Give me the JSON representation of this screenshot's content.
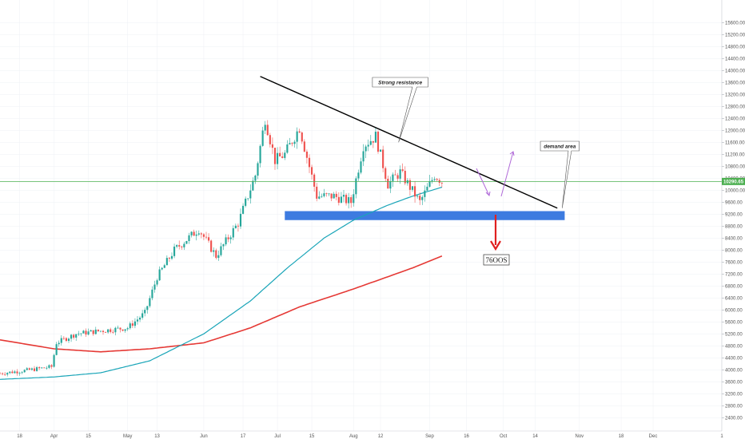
{
  "colors": {
    "bull": "#26a69a",
    "bear": "#ef5350",
    "ma_fast": "#1aa5b8",
    "ma_slow": "#e53935",
    "current_price_line": "#4caf50",
    "demand_zone": "#3d7be0",
    "arrow_down": "#e02020",
    "projection_arrows": "#b06ad8",
    "trendline": "#000000",
    "grid": "#eef0f4"
  },
  "chart_data": {
    "type": "candlestick",
    "y_axis": {
      "position": "right",
      "ylim": [
        2200,
        16000
      ],
      "ticks": [
        "2400.00",
        "2800.00",
        "3200.00",
        "3600.00",
        "4000.00",
        "4400.00",
        "4800.00",
        "5200.00",
        "5600.00",
        "6000.00",
        "6400.00",
        "6800.00",
        "7200.00",
        "7600.00",
        "8000.00",
        "8400.00",
        "8800.00",
        "9200.00",
        "9600.00",
        "10000.00",
        "10400.00",
        "10800.00",
        "11200.00",
        "11600.00",
        "12000.00",
        "12400.00",
        "12800.00",
        "13200.00",
        "13600.00",
        "14000.00",
        "14400.00",
        "14800.00",
        "15200.00",
        "15600.00"
      ]
    },
    "x_axis": {
      "range": [
        "2019-03-10",
        "2019-12-29"
      ],
      "ticks": [
        {
          "date": "2019-03-18",
          "label": "18"
        },
        {
          "date": "2019-04-01",
          "label": "Apr"
        },
        {
          "date": "2019-04-15",
          "label": "15"
        },
        {
          "date": "2019-05-01",
          "label": "May"
        },
        {
          "date": "2019-05-13",
          "label": "13"
        },
        {
          "date": "2019-06-01",
          "label": "Jun"
        },
        {
          "date": "2019-06-17",
          "label": "17"
        },
        {
          "date": "2019-07-01",
          "label": "Jul"
        },
        {
          "date": "2019-07-15",
          "label": "15"
        },
        {
          "date": "2019-08-01",
          "label": "Aug"
        },
        {
          "date": "2019-08-12",
          "label": "12"
        },
        {
          "date": "2019-09-01",
          "label": "Sep"
        },
        {
          "date": "2019-09-16",
          "label": "16"
        },
        {
          "date": "2019-10-01",
          "label": "Oct"
        },
        {
          "date": "2019-10-14",
          "label": "14"
        },
        {
          "date": "2019-11-01",
          "label": "Nov"
        },
        {
          "date": "2019-11-18",
          "label": "18"
        },
        {
          "date": "2019-12-01",
          "label": "Dec"
        },
        {
          "date": "2019-12-29",
          "label": "1"
        }
      ]
    },
    "current_price": {
      "value": 10290.65,
      "label": "10290.65"
    },
    "price_path": [
      [
        "2019-03-10",
        3880
      ],
      [
        "2019-03-20",
        3970
      ],
      [
        "2019-03-31",
        4100
      ],
      [
        "2019-04-02",
        4900
      ],
      [
        "2019-04-10",
        5200
      ],
      [
        "2019-04-20",
        5300
      ],
      [
        "2019-05-01",
        5400
      ],
      [
        "2019-05-08",
        5900
      ],
      [
        "2019-05-13",
        7100
      ],
      [
        "2019-05-20",
        8000
      ],
      [
        "2019-05-30",
        8700
      ],
      [
        "2019-06-06",
        7800
      ],
      [
        "2019-06-15",
        8900
      ],
      [
        "2019-06-22",
        10500
      ],
      [
        "2019-06-26",
        12400
      ],
      [
        "2019-06-30",
        11000
      ],
      [
        "2019-07-04",
        11200
      ],
      [
        "2019-07-10",
        12100
      ],
      [
        "2019-07-17",
        9800
      ],
      [
        "2019-07-24",
        9800
      ],
      [
        "2019-07-31",
        9600
      ],
      [
        "2019-08-05",
        11500
      ],
      [
        "2019-08-10",
        11800
      ],
      [
        "2019-08-15",
        10200
      ],
      [
        "2019-08-20",
        10600
      ],
      [
        "2019-08-28",
        9600
      ],
      [
        "2019-09-03",
        10500
      ],
      [
        "2019-09-06",
        10300
      ]
    ],
    "ma_fast": [
      [
        "2019-03-10",
        3680
      ],
      [
        "2019-04-01",
        3760
      ],
      [
        "2019-04-20",
        3900
      ],
      [
        "2019-05-10",
        4300
      ],
      [
        "2019-06-01",
        5200
      ],
      [
        "2019-06-20",
        6300
      ],
      [
        "2019-07-05",
        7400
      ],
      [
        "2019-07-20",
        8400
      ],
      [
        "2019-08-01",
        9000
      ],
      [
        "2019-08-15",
        9500
      ],
      [
        "2019-08-25",
        9800
      ],
      [
        "2019-09-06",
        10100
      ]
    ],
    "ma_slow": [
      [
        "2019-03-10",
        5000
      ],
      [
        "2019-04-01",
        4700
      ],
      [
        "2019-04-20",
        4600
      ],
      [
        "2019-05-10",
        4700
      ],
      [
        "2019-06-01",
        4900
      ],
      [
        "2019-06-20",
        5400
      ],
      [
        "2019-07-10",
        6100
      ],
      [
        "2019-08-01",
        6700
      ],
      [
        "2019-08-25",
        7400
      ],
      [
        "2019-09-06",
        7800
      ]
    ],
    "annotations": {
      "resistance_line": {
        "from": [
          "2019-06-24",
          13800
        ],
        "to": [
          "2019-10-23",
          9400
        ]
      },
      "demand_zone": {
        "date_from": "2019-07-04",
        "date_to": "2019-10-26",
        "price_low": 9000,
        "price_high": 9300
      },
      "callouts": [
        {
          "text": "Strong resistance",
          "anchor": [
            "2019-08-20",
            11600
          ]
        },
        {
          "text": "demand area",
          "anchor": [
            "2019-10-24",
            9400
          ]
        }
      ],
      "target": {
        "text": "76OOS"
      }
    }
  }
}
